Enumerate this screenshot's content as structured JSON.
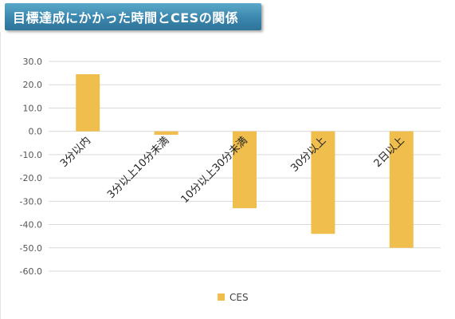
{
  "header": {
    "title": "目標達成にかかった時間とCESの関係"
  },
  "chart_data": {
    "type": "bar",
    "categories": [
      "3分以内",
      "3分以上10分未満",
      "10分以上30分未満",
      "30分以上",
      "2日以上"
    ],
    "series": [
      {
        "name": "CES",
        "values": [
          24.5,
          -1.5,
          -33.0,
          -44.0,
          -50.0
        ],
        "color": "#F0BE4C"
      }
    ],
    "ylim": [
      -60,
      30
    ],
    "yticks": [
      "30.0",
      "20.0",
      "10.0",
      "0.0",
      "-10.0",
      "-20.0",
      "-30.0",
      "-40.0",
      "-50.0",
      "-60.0"
    ],
    "grid": true,
    "legend_position": "bottom"
  }
}
